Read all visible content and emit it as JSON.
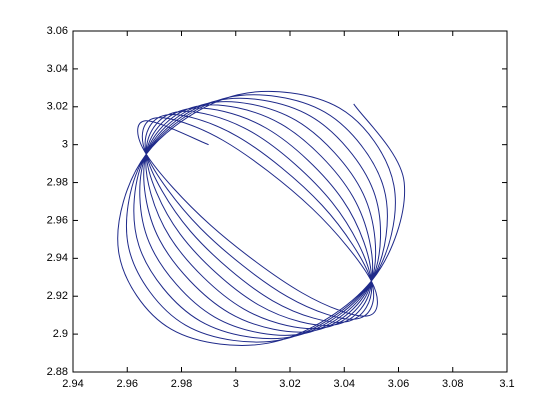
{
  "chart_data": {
    "type": "line",
    "x": [
      2.99,
      2.9666,
      2.967,
      2.9908,
      3.0243,
      3.0486,
      3.05,
      3.0281,
      2.9954,
      2.9703,
      2.967,
      2.987,
      3.019,
      3.0448,
      3.05,
      3.0319,
      3.0007,
      2.9741,
      2.967,
      2.9833,
      3.0136,
      3.041,
      3.05,
      3.0356,
      3.0061,
      2.9779,
      2.967,
      2.9795,
      3.0083,
      3.0372,
      3.05,
      3.0394,
      3.0114,
      2.9817,
      2.967,
      2.9757,
      3.0029,
      3.0334,
      3.05,
      3.0432,
      3.0168,
      2.9855,
      2.967,
      2.9719,
      2.9976,
      3.0296,
      3.05,
      3.047,
      3.0221,
      2.9893,
      2.967,
      2.9681,
      2.9922,
      3.0259,
      3.05,
      3.0508,
      3.0275,
      2.993,
      2.967,
      2.9643,
      2.9869,
      3.0221,
      3.05,
      3.0546,
      3.0328,
      2.9968,
      2.967,
      2.9606,
      2.9815,
      3.0183,
      3.05,
      3.0583,
      3.0382,
      3.0006,
      2.967,
      2.9568,
      2.9762,
      3.0145,
      3.05,
      3.0621,
      3.0435
    ],
    "values": [
      3.0,
      3.0126,
      2.995,
      2.9574,
      2.9219,
      2.9096,
      2.928,
      2.9664,
      3.0022,
      3.0141,
      2.995,
      2.9559,
      2.9198,
      2.9081,
      2.928,
      2.9679,
      3.0043,
      3.0156,
      2.995,
      2.9543,
      2.9176,
      2.9066,
      2.928,
      2.9694,
      3.0065,
      3.0172,
      2.995,
      2.9528,
      2.9155,
      2.9051,
      2.928,
      2.9709,
      3.0086,
      3.0187,
      2.995,
      2.9513,
      2.9133,
      2.9036,
      2.928,
      2.9725,
      3.0108,
      3.0202,
      2.995,
      2.9498,
      2.9112,
      2.902,
      2.928,
      2.974,
      3.0129,
      3.0217,
      2.995,
      2.9483,
      2.909,
      2.9005,
      2.928,
      2.9755,
      3.0151,
      3.0232,
      2.995,
      2.9467,
      2.9069,
      2.899,
      2.928,
      2.977,
      3.0172,
      3.0248,
      2.995,
      2.9452,
      2.9047,
      2.8975,
      2.928,
      2.9785,
      3.0194,
      3.0263,
      2.995,
      2.9437,
      2.9026,
      2.896,
      2.928,
      2.9801,
      3.0215
    ],
    "color": "#1f2a8a",
    "xlim": [
      2.94,
      3.1
    ],
    "xticks": [
      2.94,
      2.96,
      2.98,
      3,
      3.02,
      3.04,
      3.06,
      3.08,
      3.1
    ],
    "ylim": [
      2.88,
      3.06
    ],
    "yticks": [
      2.88,
      2.9,
      2.92,
      2.94,
      2.96,
      2.98,
      3,
      3.02,
      3.04,
      3.06
    ],
    "grid": false
  }
}
